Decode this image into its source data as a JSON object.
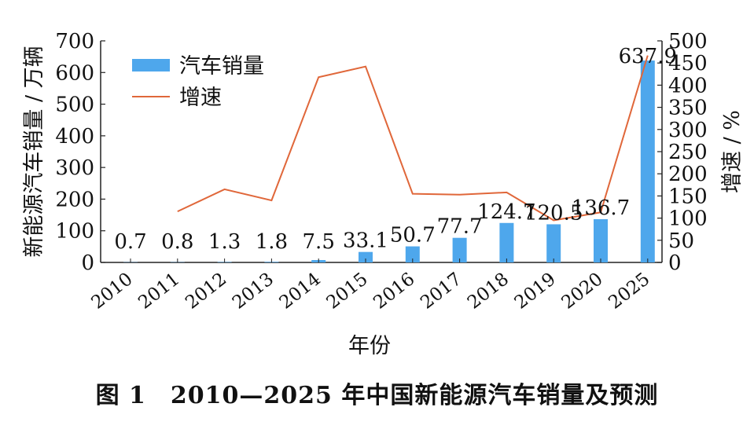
{
  "caption": "图 1　2010—2025 年中国新能源汽车销量及预测",
  "colors": {
    "bar": "#4ea7ec",
    "line": "#e0673a",
    "axis": "#222222"
  },
  "chart_data": {
    "type": "bar",
    "categories": [
      "2010",
      "2011",
      "2012",
      "2013",
      "2014",
      "2015",
      "2016",
      "2017",
      "2018",
      "2019",
      "2020",
      "2025"
    ],
    "series": [
      {
        "name": "汽车销量",
        "type": "bar",
        "axis": "left",
        "values": [
          0.7,
          0.8,
          1.3,
          1.8,
          7.5,
          33.1,
          50.7,
          77.7,
          124.7,
          120.5,
          136.7,
          637.9
        ],
        "labels": [
          "0.7",
          "0.8",
          "1.3",
          "1.8",
          "7.5",
          "33.1",
          "50.7",
          "77.7",
          "124.7",
          "120.5",
          "136.7",
          "637.9"
        ]
      },
      {
        "name": "增速",
        "type": "line",
        "axis": "right",
        "values": [
          null,
          115,
          165,
          140,
          418,
          442,
          155,
          153,
          158,
          95,
          113,
          467
        ]
      }
    ],
    "xlabel": "年份",
    "ylabel": "新能源汽车销量 / 万辆",
    "y2label": "增速 / %",
    "ylim": [
      0,
      700
    ],
    "y2lim": [
      0,
      500
    ],
    "yticks": [
      0,
      100,
      200,
      300,
      400,
      500,
      600,
      700
    ],
    "y2ticks": [
      0,
      50,
      100,
      150,
      200,
      250,
      300,
      350,
      400,
      450,
      500
    ],
    "legend": "top-left",
    "grid": false
  }
}
